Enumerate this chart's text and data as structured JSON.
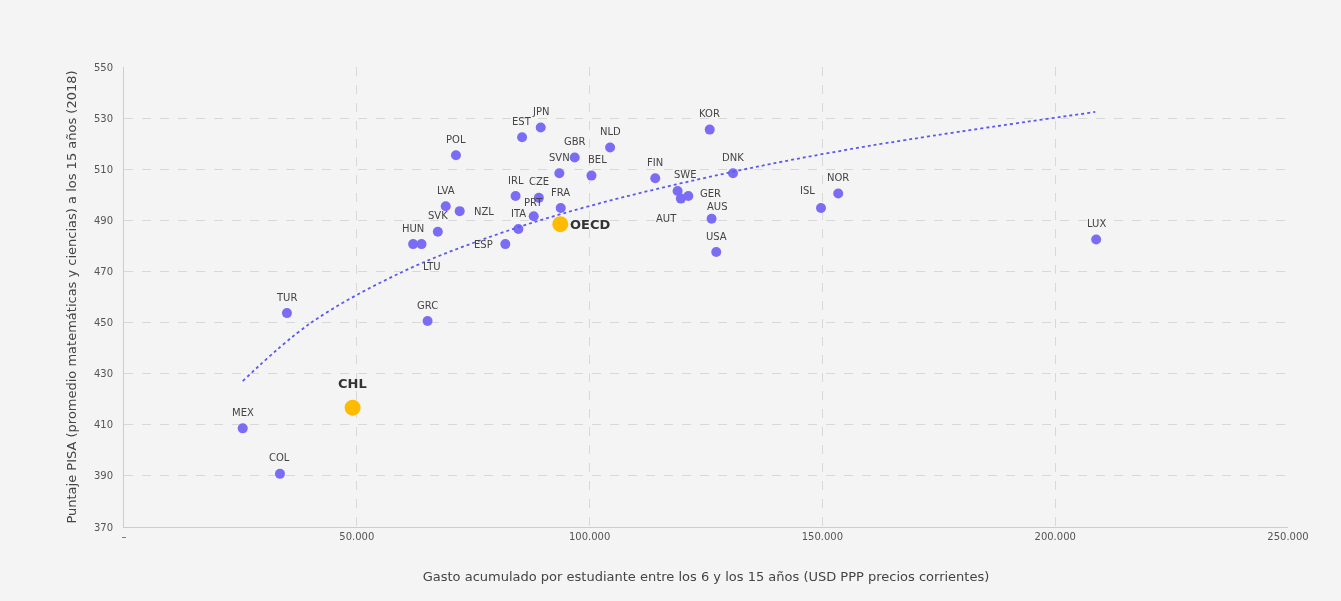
{
  "chart_data": {
    "type": "scatter",
    "xlabel": "Gasto acumulado por estudiante entre los 6 y los 15 años (USD PPP precios corrientes)",
    "ylabel": "Puntaje PISA (promedio matemáticas y ciencias) a los 15 años (2018)",
    "xlim": [
      0,
      250000
    ],
    "xticks": [
      {
        "value": 0,
        "label": "–"
      },
      {
        "value": 50000,
        "label": "50.000"
      },
      {
        "value": 100000,
        "label": "100.000"
      },
      {
        "value": 150000,
        "label": "150.000"
      },
      {
        "value": 200000,
        "label": "200.000"
      },
      {
        "value": 250000,
        "label": "250.000"
      }
    ],
    "ylim": [
      370,
      550
    ],
    "yticks": [
      370,
      390,
      410,
      430,
      450,
      470,
      490,
      510,
      530,
      550
    ],
    "grid": true,
    "series": [
      {
        "color": "#7b6cf6",
        "x": [
          25500,
          33500,
          35000,
          65200,
          62100,
          63900,
          67400,
          69100,
          71300,
          72100,
          81900,
          84700,
          84100,
          85500,
          88000,
          89100,
          89500,
          93500,
          93800,
          96800,
          100400,
          104400,
          114100,
          118900,
          119600,
          121200,
          125800,
          126200,
          127200,
          130800,
          149700,
          153400,
          208800
        ],
        "values": [
          408.6,
          390.8,
          453.7,
          450.6,
          480.7,
          480.7,
          485.5,
          495.5,
          515.5,
          493.6,
          480.7,
          486.6,
          499.5,
          522.5,
          491.6,
          498.8,
          526.3,
          508.4,
          494.8,
          514.6,
          507.5,
          518.5,
          506.5,
          501.5,
          498.5,
          499.5,
          525.5,
          490.6,
          477.6,
          508.4,
          494.8,
          500.5,
          482.5
        ]
      },
      {
        "color": "#ffbb00",
        "x": [
          49100,
          93700
        ],
        "values": [
          416.7,
          488.5
        ]
      },
      {
        "type": "line",
        "color": "#5a5af0",
        "line_style": "dotted",
        "marker": "none",
        "x": [
          25500,
          40000,
          60000,
          80000,
          100000,
          130000,
          160000,
          208600
        ],
        "values": [
          427.1,
          449.7,
          470.0,
          484.4,
          495.6,
          508.7,
          519.1,
          532.4
        ]
      }
    ],
    "annotations": [
      {
        "text": "MEX",
        "x": 25500,
        "y": 408.6
      },
      {
        "text": "COL",
        "x": 33500,
        "y": 390.8
      },
      {
        "text": "TUR",
        "x": 35000,
        "y": 453.7
      },
      {
        "text": "GRC",
        "x": 65200,
        "y": 450.6
      },
      {
        "text": "HUN",
        "x": 62100,
        "y": 480.7
      },
      {
        "text": "LTU",
        "x": 63900,
        "y": 480.7
      },
      {
        "text": "SVK",
        "x": 67400,
        "y": 485.5
      },
      {
        "text": "LVA",
        "x": 69100,
        "y": 495.5
      },
      {
        "text": "POL",
        "x": 71300,
        "y": 515.5
      },
      {
        "text": "NZL",
        "x": 72100,
        "y": 493.6
      },
      {
        "text": "ESP",
        "x": 81900,
        "y": 480.7
      },
      {
        "text": "ITA",
        "x": 84700,
        "y": 486.6
      },
      {
        "text": "IRL",
        "x": 84100,
        "y": 499.5
      },
      {
        "text": "EST",
        "x": 85500,
        "y": 522.5
      },
      {
        "text": "PRT",
        "x": 88000,
        "y": 491.6
      },
      {
        "text": "CZE",
        "x": 89100,
        "y": 498.8
      },
      {
        "text": "JPN",
        "x": 89500,
        "y": 526.3
      },
      {
        "text": "SVN",
        "x": 93500,
        "y": 508.4
      },
      {
        "text": "FRA",
        "x": 93800,
        "y": 494.8
      },
      {
        "text": "GBR",
        "x": 96800,
        "y": 514.6
      },
      {
        "text": "BEL",
        "x": 100400,
        "y": 507.5
      },
      {
        "text": "NLD",
        "x": 104400,
        "y": 518.5
      },
      {
        "text": "FIN",
        "x": 114100,
        "y": 506.5
      },
      {
        "text": "SWE",
        "x": 118900,
        "y": 501.5
      },
      {
        "text": "AUT",
        "x": 119600,
        "y": 498.5
      },
      {
        "text": "GER",
        "x": 121200,
        "y": 499.5
      },
      {
        "text": "KOR",
        "x": 125800,
        "y": 525.5
      },
      {
        "text": "AUS",
        "x": 126200,
        "y": 490.6
      },
      {
        "text": "USA",
        "x": 127200,
        "y": 477.6
      },
      {
        "text": "DNK",
        "x": 130800,
        "y": 508.4
      },
      {
        "text": "ISL",
        "x": 149700,
        "y": 494.8
      },
      {
        "text": "NOR",
        "x": 153400,
        "y": 500.5
      },
      {
        "text": "LUX",
        "x": 208800,
        "y": 482.5
      },
      {
        "text": "CHL",
        "x": 49100,
        "y": 416.7
      },
      {
        "text": "OECD",
        "x": 93700,
        "y": 488.5
      }
    ]
  }
}
